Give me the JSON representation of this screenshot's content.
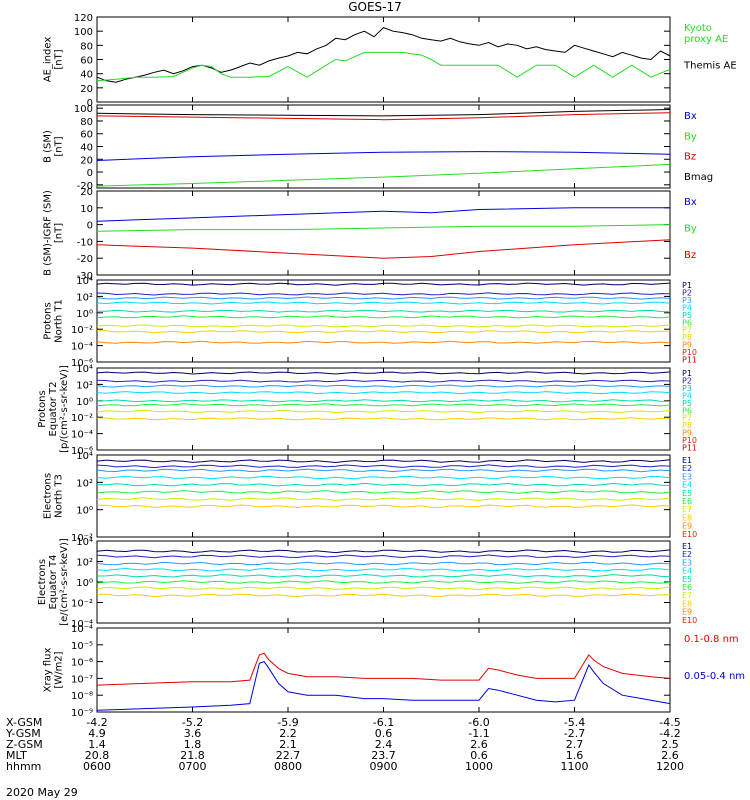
{
  "title": "GOES-17",
  "date": "2020 May 29",
  "colors": {
    "black": "#000000",
    "red": "#e00000",
    "green": "#22dd22",
    "blue": "#0000dd",
    "p_colors": [
      "#000000",
      "#000066",
      "#2222cc",
      "#2299ff",
      "#00ddff",
      "#00ddaa",
      "#22ee44",
      "#ccee00",
      "#ffcc00",
      "#ff8800",
      "#ee2200",
      "#cc0000"
    ]
  },
  "chart_data": [
    {
      "type": "line",
      "panel": "AE",
      "ylabel": "AE_index\n[nT]",
      "ylim": [
        0,
        120
      ],
      "yticks": [
        0,
        20,
        40,
        60,
        80,
        100,
        120
      ],
      "xlim": [
        6,
        12
      ],
      "legend": [
        {
          "label": "Kyoto\nproxy AE",
          "color": "#22dd22"
        },
        {
          "label": "Themis AE",
          "color": "#000000"
        }
      ],
      "series": [
        {
          "name": "Themis AE",
          "color": "#000000",
          "x": [
            6.0,
            6.1,
            6.2,
            6.3,
            6.4,
            6.5,
            6.6,
            6.7,
            6.8,
            6.9,
            7.0,
            7.1,
            7.2,
            7.3,
            7.4,
            7.5,
            7.6,
            7.7,
            7.8,
            7.9,
            8.0,
            8.1,
            8.2,
            8.3,
            8.4,
            8.5,
            8.6,
            8.7,
            8.8,
            8.9,
            9.0,
            9.1,
            9.2,
            9.3,
            9.4,
            9.5,
            9.6,
            9.7,
            9.8,
            9.9,
            10.0,
            10.1,
            10.2,
            10.3,
            10.4,
            10.5,
            10.6,
            10.7,
            10.8,
            10.9,
            11.0,
            11.1,
            11.2,
            11.3,
            11.4,
            11.5,
            11.6,
            11.7,
            11.8,
            11.9,
            12.0
          ],
          "y": [
            35,
            30,
            28,
            32,
            35,
            38,
            42,
            45,
            40,
            44,
            50,
            52,
            48,
            42,
            45,
            50,
            55,
            52,
            58,
            62,
            65,
            70,
            68,
            75,
            80,
            90,
            88,
            95,
            100,
            92,
            105,
            100,
            98,
            95,
            90,
            88,
            86,
            90,
            85,
            82,
            80,
            84,
            78,
            82,
            80,
            75,
            78,
            74,
            72,
            70,
            80,
            76,
            72,
            68,
            64,
            70,
            66,
            62,
            60,
            72,
            65
          ]
        },
        {
          "name": "Kyoto proxy AE",
          "color": "#22dd22",
          "x": [
            6.0,
            6.2,
            6.4,
            6.6,
            6.8,
            7.0,
            7.1,
            7.2,
            7.3,
            7.4,
            7.6,
            7.8,
            8.0,
            8.2,
            8.4,
            8.5,
            8.6,
            8.8,
            9.0,
            9.2,
            9.4,
            9.5,
            9.6,
            9.8,
            10.0,
            10.2,
            10.4,
            10.6,
            10.8,
            11.0,
            11.2,
            11.4,
            11.6,
            11.8,
            12.0
          ],
          "y": [
            30,
            32,
            35,
            35,
            36,
            48,
            52,
            50,
            40,
            35,
            35,
            36,
            50,
            35,
            52,
            60,
            58,
            70,
            70,
            70,
            66,
            60,
            52,
            52,
            52,
            52,
            35,
            52,
            52,
            35,
            52,
            35,
            52,
            35,
            46
          ]
        }
      ]
    },
    {
      "type": "line",
      "panel": "B_SM",
      "ylabel": "B (SM)\n[nT]",
      "ylim": [
        -25,
        105
      ],
      "yticks": [
        -20,
        0,
        20,
        40,
        60,
        80,
        100
      ],
      "xlim": [
        6,
        12
      ],
      "legend": [
        {
          "label": "Bx",
          "color": "#0000dd"
        },
        {
          "label": "By",
          "color": "#22dd22"
        },
        {
          "label": "Bz",
          "color": "#e00000"
        },
        {
          "label": "Bmag",
          "color": "#000000"
        }
      ],
      "series": [
        {
          "name": "Bx",
          "color": "#0000dd",
          "x": [
            6,
            7,
            8,
            9,
            10,
            11,
            12
          ],
          "y": [
            18,
            24,
            28,
            31,
            32,
            31,
            28
          ]
        },
        {
          "name": "By",
          "color": "#22dd22",
          "x": [
            6,
            7,
            8,
            9,
            10,
            11,
            12
          ],
          "y": [
            -22,
            -18,
            -13,
            -8,
            -2,
            5,
            12
          ]
        },
        {
          "name": "Bz",
          "color": "#e00000",
          "x": [
            6,
            7,
            8,
            9,
            10,
            11,
            12
          ],
          "y": [
            88,
            86,
            84,
            82,
            85,
            90,
            93
          ]
        },
        {
          "name": "Bmag",
          "color": "#000000",
          "x": [
            6,
            7,
            8,
            9,
            10,
            11,
            12
          ],
          "y": [
            92,
            90,
            89,
            88,
            90,
            95,
            98
          ]
        }
      ]
    },
    {
      "type": "line",
      "panel": "B_minus_IGRF",
      "ylabel": "B (SM)-IGRF (SM)\n[nT]",
      "ylim": [
        -30,
        20
      ],
      "yticks": [
        -30,
        -20,
        -10,
        0,
        10,
        20
      ],
      "xlim": [
        6,
        12
      ],
      "legend": [
        {
          "label": "Bx",
          "color": "#0000dd"
        },
        {
          "label": "By",
          "color": "#22dd22"
        },
        {
          "label": "Bz",
          "color": "#e00000"
        }
      ],
      "series": [
        {
          "name": "Bx",
          "color": "#0000dd",
          "x": [
            6,
            7,
            8,
            9,
            9.5,
            10,
            11,
            12
          ],
          "y": [
            2,
            4,
            6,
            8,
            7,
            9,
            10,
            10
          ]
        },
        {
          "name": "By",
          "color": "#22dd22",
          "x": [
            6,
            7,
            8,
            9,
            10,
            11,
            12
          ],
          "y": [
            -4,
            -3,
            -3,
            -2,
            -1,
            -1,
            0
          ]
        },
        {
          "name": "Bz",
          "color": "#e00000",
          "x": [
            6,
            7,
            8,
            9,
            9.5,
            10,
            11,
            12
          ],
          "y": [
            -12,
            -14,
            -17,
            -20,
            -19,
            -16,
            -12,
            -9
          ]
        }
      ]
    },
    {
      "type": "line",
      "panel": "Protons_T1",
      "ylabel": "Protons\nNorth T1",
      "scale": "log",
      "ylim_exp": [
        -6,
        4
      ],
      "yticks": [
        "10⁴",
        "10²",
        "10⁰",
        "10⁻²",
        "10⁻⁴",
        "10⁻⁶"
      ],
      "xlim": [
        6,
        12
      ],
      "legend": [
        "P1",
        "P2",
        "P3",
        "P4",
        "P5",
        "P6",
        "P7",
        "P8",
        "P9",
        "P10",
        "P11"
      ],
      "series": [
        {
          "name": "P1",
          "exp": 3.5
        },
        {
          "name": "P2",
          "exp": 2.3
        },
        {
          "name": "P3",
          "exp": 1.8
        },
        {
          "name": "P4",
          "exp": 1.2
        },
        {
          "name": "P5",
          "exp": 0.2
        },
        {
          "name": "P6",
          "exp": -0.5
        },
        {
          "name": "P7",
          "exp": -1.6
        },
        {
          "name": "P8",
          "exp": -2.3
        },
        {
          "name": "P9",
          "exp": -3.6
        }
      ]
    },
    {
      "type": "line",
      "panel": "Protons_T2",
      "ylabel": "Protons\nEquator T2\n[p/(cm²-s-sr-keV)]",
      "scale": "log",
      "ylim_exp": [
        -6,
        4
      ],
      "yticks": [
        "10⁴",
        "10²",
        "10⁰",
        "10⁻²",
        "10⁻⁴",
        "10⁻⁶"
      ],
      "xlim": [
        6,
        12
      ],
      "legend": [
        "P1",
        "P2",
        "P3",
        "P4",
        "P5",
        "P6",
        "P7",
        "P8",
        "P9",
        "P10",
        "P11"
      ],
      "series": [
        {
          "name": "P1",
          "exp": 3.4
        },
        {
          "name": "P2",
          "exp": 2.4
        },
        {
          "name": "P3",
          "exp": 1.8
        },
        {
          "name": "P4",
          "exp": 1.0
        },
        {
          "name": "P5",
          "exp": 0.0
        },
        {
          "name": "P6",
          "exp": -0.5
        },
        {
          "name": "P7",
          "exp": -1.3
        },
        {
          "name": "P8",
          "exp": -2.2
        }
      ]
    },
    {
      "type": "line",
      "panel": "Electrons_T3",
      "ylabel": "Electrons\nNorth T3",
      "scale": "log",
      "ylim_exp": [
        -4,
        4
      ],
      "yticks": [
        "10⁴",
        "10²",
        "10⁰",
        "10⁻²"
      ],
      "xlim": [
        6,
        12
      ],
      "legend": [
        "E1",
        "E2",
        "E3",
        "E4",
        "E5",
        "E6",
        "E7",
        "E8",
        "E9",
        "E10"
      ],
      "series": [
        {
          "name": "E1",
          "exp": 3.4
        },
        {
          "name": "E2",
          "exp": 2.9
        },
        {
          "name": "E3",
          "exp": 2.5
        },
        {
          "name": "E4",
          "exp": 1.8
        },
        {
          "name": "E5",
          "exp": 1.1
        },
        {
          "name": "E6",
          "exp": 0.4
        },
        {
          "name": "E7",
          "exp": -0.3
        },
        {
          "name": "E8",
          "exp": -1.0
        }
      ]
    },
    {
      "type": "line",
      "panel": "Electrons_T4",
      "ylabel": "Electrons\nEquator T4\n[e/(cm²-s-sr-keV)]",
      "scale": "log",
      "ylim_exp": [
        -4,
        4
      ],
      "yticks": [
        "10⁴",
        "10²",
        "10⁰",
        "10⁻²",
        "10⁻⁴"
      ],
      "xlim": [
        6,
        12
      ],
      "legend": [
        "E1",
        "E2",
        "E3",
        "E4",
        "E5",
        "E6",
        "E7",
        "E8",
        "E9",
        "E10"
      ],
      "series": [
        {
          "name": "E1",
          "exp": 3.0
        },
        {
          "name": "E2",
          "exp": 2.5
        },
        {
          "name": "E3",
          "exp": 1.8
        },
        {
          "name": "E4",
          "exp": 1.2
        },
        {
          "name": "E5",
          "exp": 0.6
        },
        {
          "name": "E6",
          "exp": 0.0
        },
        {
          "name": "E7",
          "exp": -0.6
        },
        {
          "name": "E8",
          "exp": -1.3
        }
      ]
    },
    {
      "type": "line",
      "panel": "Xray",
      "ylabel": "Xray flux\n[W/m2]",
      "scale": "log",
      "ylim_exp": [
        -9,
        -4
      ],
      "yticks": [
        "10⁻⁴",
        "10⁻⁵",
        "10⁻⁶",
        "10⁻⁷",
        "10⁻⁸",
        "10⁻⁹"
      ],
      "xlim": [
        6,
        12
      ],
      "legend": [
        {
          "label": "0.1-0.8 nm",
          "color": "#e00000"
        },
        {
          "label": "0.05-0.4 nm",
          "color": "#0000dd"
        }
      ],
      "series": [
        {
          "name": "0.1-0.8 nm",
          "color": "#e00000",
          "x": [
            6.0,
            6.5,
            7.0,
            7.4,
            7.6,
            7.7,
            7.75,
            7.8,
            7.9,
            8.0,
            8.2,
            8.5,
            8.8,
            9.0,
            9.3,
            9.6,
            10.0,
            10.1,
            10.2,
            10.4,
            10.6,
            10.8,
            11.0,
            11.15,
            11.2,
            11.3,
            11.5,
            11.8,
            12.0
          ],
          "y": [
            -7.4,
            -7.3,
            -7.2,
            -7.2,
            -7.1,
            -5.6,
            -5.5,
            -5.9,
            -6.4,
            -6.7,
            -6.9,
            -6.9,
            -7.0,
            -7.0,
            -7.0,
            -7.1,
            -7.1,
            -6.4,
            -6.5,
            -6.8,
            -7.0,
            -7.0,
            -7.0,
            -5.6,
            -5.9,
            -6.3,
            -6.7,
            -6.9,
            -7.0
          ]
        },
        {
          "name": "0.05-0.4 nm",
          "color": "#0000dd",
          "x": [
            6.0,
            6.5,
            7.0,
            7.4,
            7.6,
            7.7,
            7.75,
            7.8,
            7.9,
            8.0,
            8.2,
            8.5,
            8.8,
            9.0,
            9.3,
            9.6,
            10.0,
            10.1,
            10.2,
            10.4,
            10.6,
            10.8,
            11.0,
            11.15,
            11.2,
            11.3,
            11.5,
            11.8,
            12.0
          ],
          "y": [
            -8.9,
            -8.8,
            -8.7,
            -8.6,
            -8.5,
            -6.1,
            -6.0,
            -6.4,
            -7.3,
            -7.8,
            -8.0,
            -8.0,
            -8.2,
            -8.2,
            -8.3,
            -8.3,
            -8.3,
            -7.6,
            -7.7,
            -8.0,
            -8.3,
            -8.4,
            -8.3,
            -6.2,
            -6.6,
            -7.3,
            -8.0,
            -8.3,
            -8.5
          ]
        }
      ]
    }
  ],
  "footer": {
    "row_labels": [
      "X-GSM",
      "Y-GSM",
      "Z-GSM",
      "MLT",
      "hhmm"
    ],
    "columns": [
      {
        "X-GSM": "-4.2",
        "Y-GSM": "4.9",
        "Z-GSM": "1.4",
        "MLT": "20.8",
        "hhmm": "0600"
      },
      {
        "X-GSM": "-5.2",
        "Y-GSM": "3.6",
        "Z-GSM": "1.8",
        "MLT": "21.8",
        "hhmm": "0700"
      },
      {
        "X-GSM": "-5.9",
        "Y-GSM": "2.2",
        "Z-GSM": "2.1",
        "MLT": "22.7",
        "hhmm": "0800"
      },
      {
        "X-GSM": "-6.1",
        "Y-GSM": "0.6",
        "Z-GSM": "2.4",
        "MLT": "23.7",
        "hhmm": "0900"
      },
      {
        "X-GSM": "-6.0",
        "Y-GSM": "-1.1",
        "Z-GSM": "2.6",
        "MLT": "0.6",
        "hhmm": "1000"
      },
      {
        "X-GSM": "-5.4",
        "Y-GSM": "-2.7",
        "Z-GSM": "2.7",
        "MLT": "1.6",
        "hhmm": "1100"
      },
      {
        "X-GSM": "-4.5",
        "Y-GSM": "-4.2",
        "Z-GSM": "2.5",
        "MLT": "2.6",
        "hhmm": "1200"
      }
    ]
  }
}
